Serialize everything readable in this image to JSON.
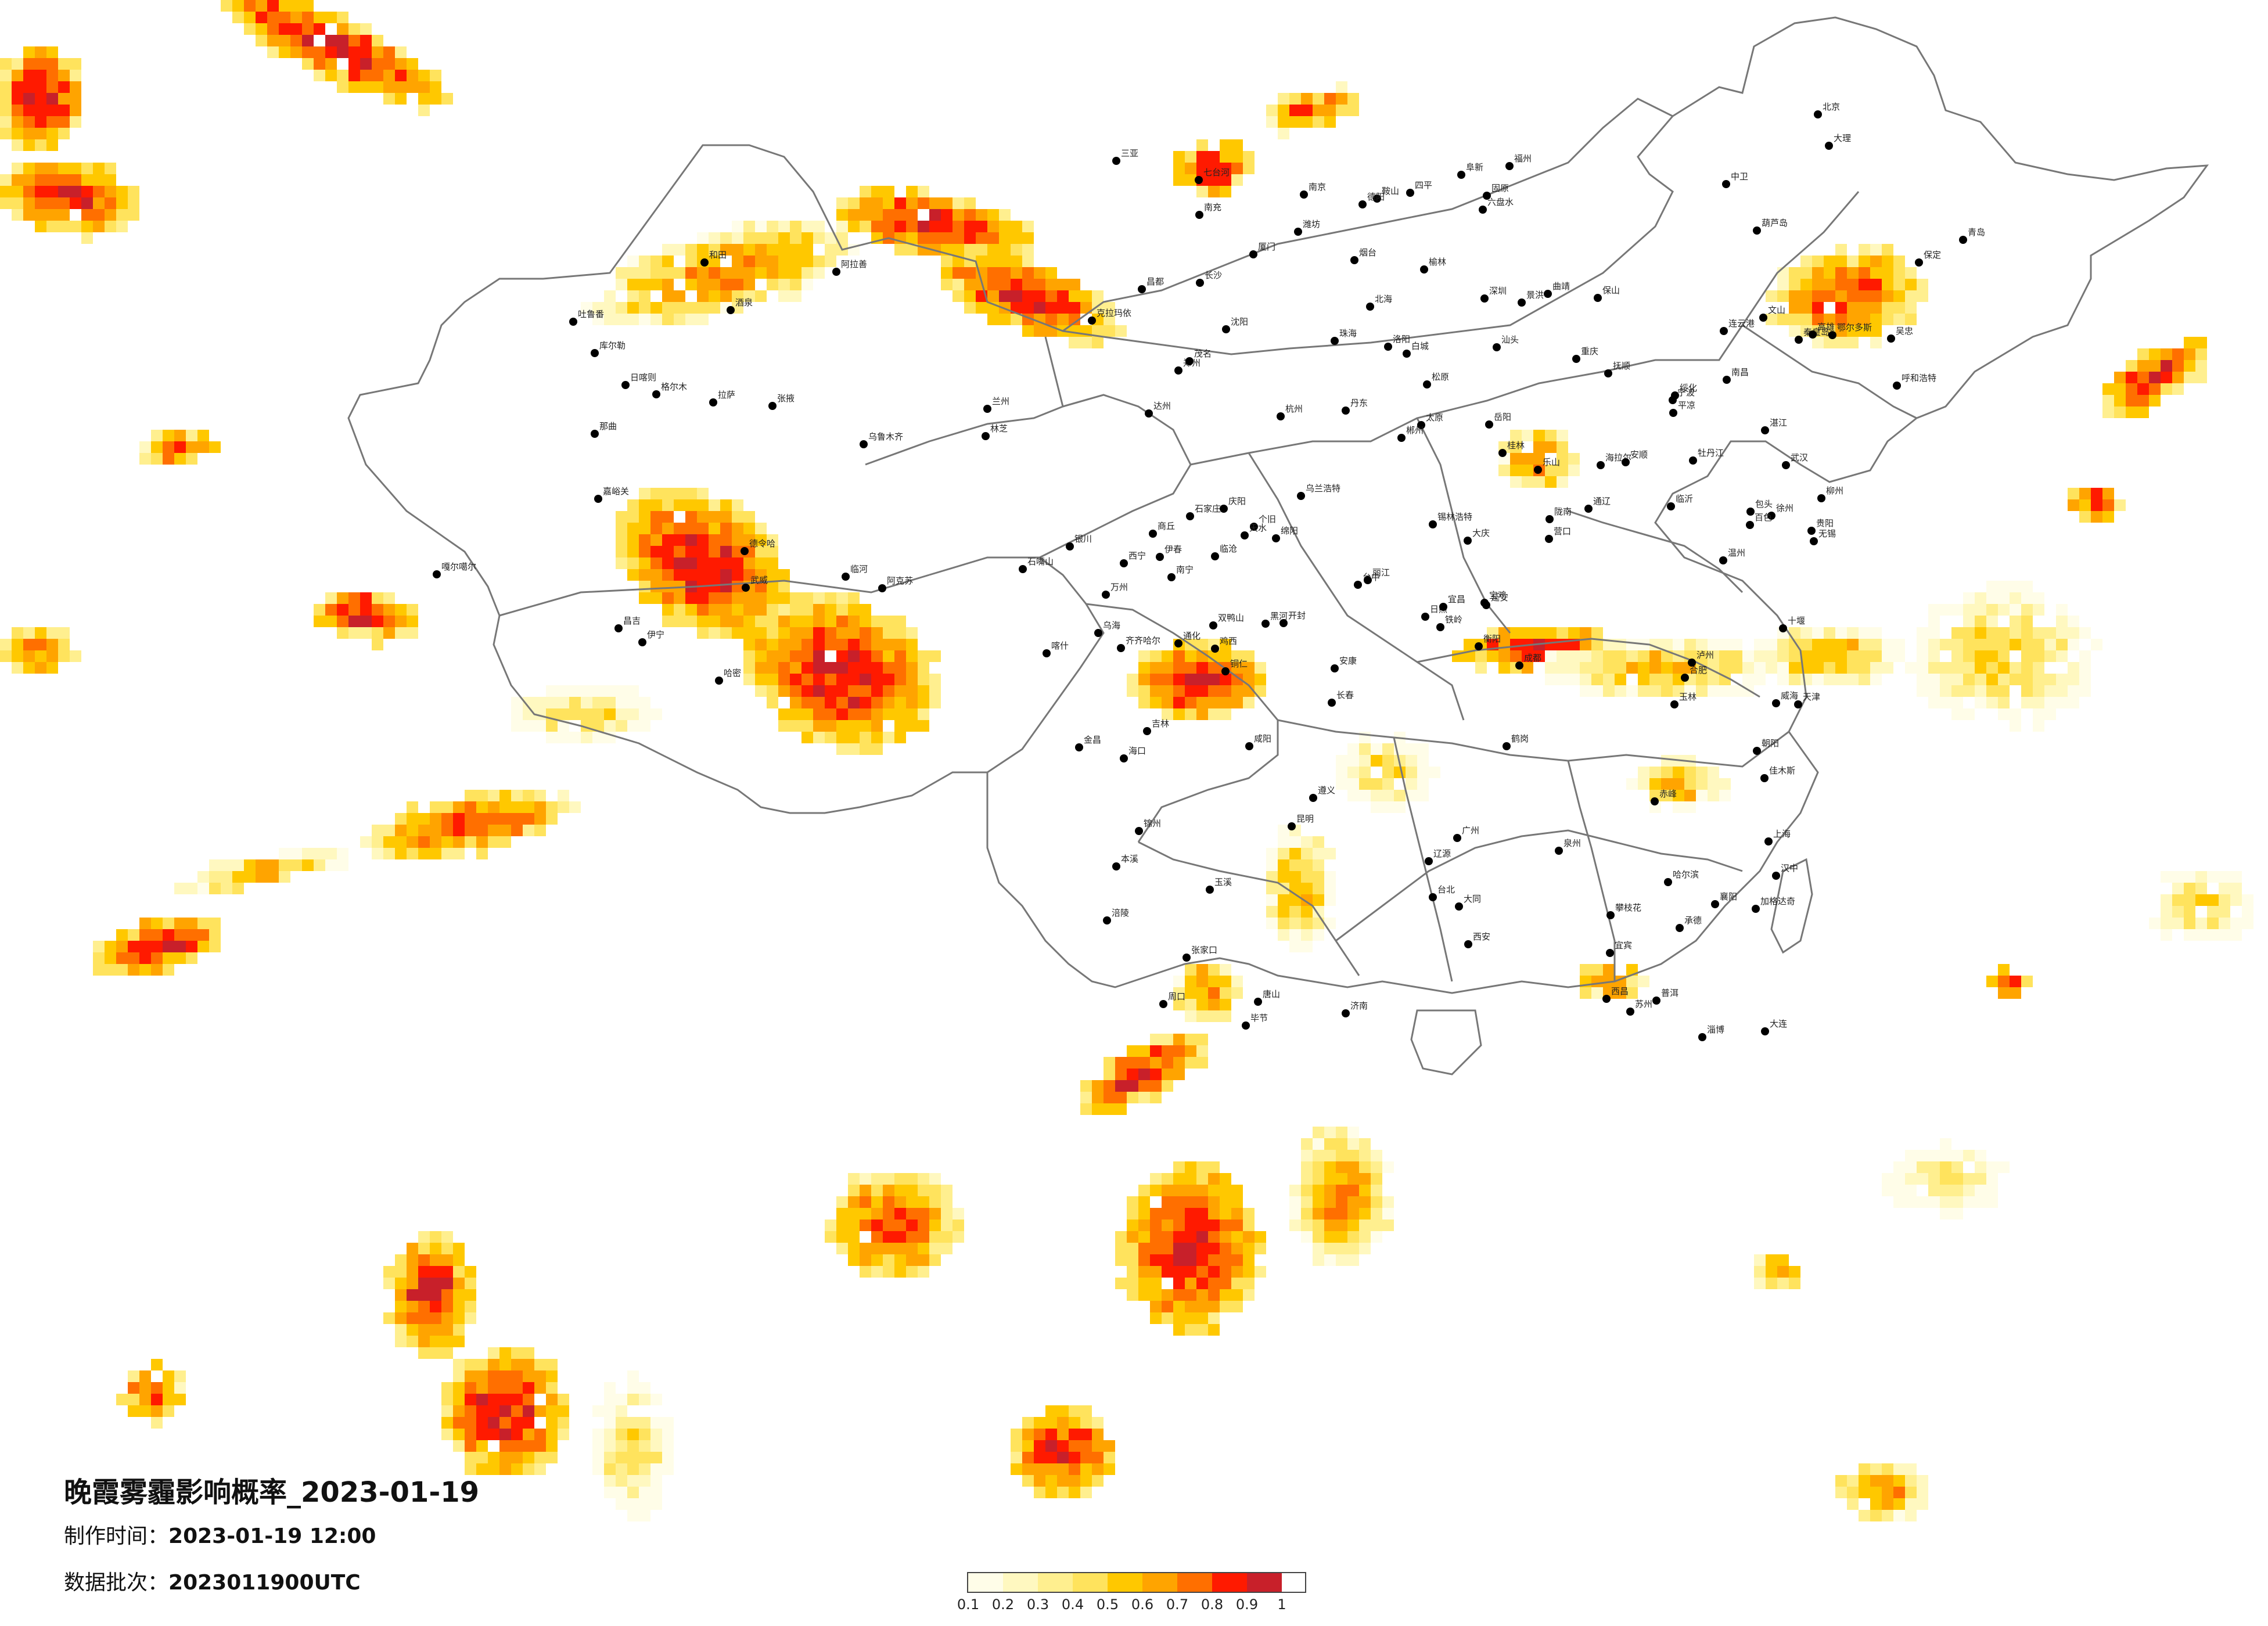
{
  "title": "晚霞雾霾影响概率_2023-01-19",
  "made_time": {
    "label": "制作时间：",
    "value": "2023-01-19 12:00"
  },
  "batch": {
    "label": "数据批次：",
    "value": "2023011900UTC"
  },
  "legend": {
    "colors": [
      "#fffde8",
      "#fff8c0",
      "#ffef8f",
      "#ffe35d",
      "#ffc800",
      "#ffa400",
      "#ff6f00",
      "#ff1a00",
      "#c8202a"
    ],
    "ticks": [
      "0.1",
      "0.2",
      "0.3",
      "0.4",
      "0.5",
      "0.6",
      "0.7",
      "0.8",
      "0.9",
      "1"
    ]
  },
  "cities": [
    "伊宁",
    "克拉玛依",
    "昌吉",
    "乌鲁木齐",
    "吐鲁番",
    "哈密",
    "库尔勒",
    "阿克苏",
    "喀什",
    "和田",
    "嘎尔噶尔",
    "拉萨",
    "那曲",
    "日喀则",
    "林芝",
    "昌都",
    "格尔木",
    "德令哈",
    "嘉峪关",
    "酒泉",
    "张掖",
    "金昌",
    "武威",
    "西宁",
    "兰州",
    "银川",
    "石嘴山",
    "乌海",
    "阿拉善",
    "临河",
    "包头",
    "呼和浩特",
    "鄂尔多斯",
    "榆林",
    "延安",
    "太原",
    "大同",
    "张家口",
    "北京",
    "天津",
    "石家庄",
    "保定",
    "唐山",
    "秦皇岛",
    "承德",
    "赤峰",
    "通辽",
    "锡林浩特",
    "乌兰浩特",
    "白城",
    "松原",
    "长春",
    "吉林",
    "四平",
    "辽源",
    "通化",
    "沈阳",
    "抚顺",
    "本溪",
    "丹东",
    "大连",
    "鞍山",
    "营口",
    "锦州",
    "葫芦岛",
    "朝阳",
    "阜新",
    "铁岭",
    "哈尔滨",
    "齐齐哈尔",
    "大庆",
    "绥化",
    "海拉尔",
    "加格达奇",
    "黑河",
    "伊春",
    "鹤岗",
    "佳木斯",
    "双鸭山",
    "七台河",
    "鸡西",
    "牡丹江",
    "济南",
    "青岛",
    "烟台",
    "威海",
    "潍坊",
    "淄博",
    "临沂",
    "日照",
    "连云港",
    "徐州",
    "南京",
    "无锡",
    "苏州",
    "上海",
    "杭州",
    "宁波",
    "温州",
    "合肥",
    "南昌",
    "福州",
    "厦门",
    "泉州",
    "台北",
    "台中",
    "高雄",
    "郑州",
    "洛阳",
    "开封",
    "商丘",
    "周口",
    "武汉",
    "宜昌",
    "襄阳",
    "十堰",
    "长沙",
    "岳阳",
    "衡阳",
    "郴州",
    "广州",
    "深圳",
    "珠海",
    "汕头",
    "湛江",
    "茂名",
    "海口",
    "三亚",
    "南宁",
    "柳州",
    "桂林",
    "百色",
    "北海",
    "玉林",
    "贵阳",
    "遵义",
    "六盘水",
    "安顺",
    "毕节",
    "铜仁",
    "昆明",
    "大理",
    "丽江",
    "曲靖",
    "玉溪",
    "普洱",
    "景洪",
    "保山",
    "临沧",
    "个旧",
    "文山",
    "成都",
    "绵阳",
    "德阳",
    "南充",
    "达州",
    "宜宾",
    "泸州",
    "乐山",
    "西昌",
    "攀枝花",
    "重庆",
    "万州",
    "涪陵",
    "西安",
    "宝鸡",
    "咸阳",
    "汉中",
    "安康",
    "天水",
    "平凉",
    "庆阳",
    "陇南",
    "固原",
    "中卫",
    "吴忠"
  ]
}
